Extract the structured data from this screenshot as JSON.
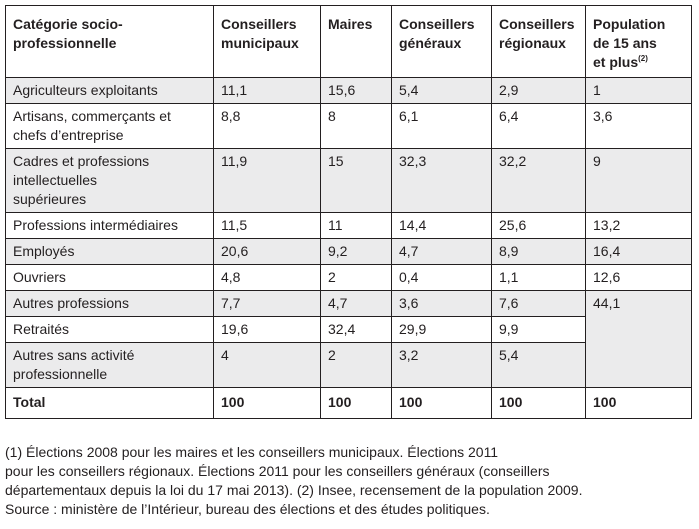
{
  "table": {
    "headers": [
      "Catégorie socio-professionnelle",
      "Conseillers municipaux",
      "Maires",
      "Conseillers généraux",
      "Conseillers régionaux",
      "Population de 15 ans et plus"
    ],
    "header_lines": {
      "c0": [
        "Catégorie socio-",
        "professionnelle"
      ],
      "c1": [
        "Conseillers",
        "municipaux"
      ],
      "c2": [
        "Maires"
      ],
      "c3": [
        "Conseillers",
        "généraux"
      ],
      "c4": [
        "Conseillers",
        "régionaux"
      ],
      "c5": [
        "Population",
        "de 15 ans",
        "et plus"
      ],
      "c5_note": "(2)"
    },
    "rows": [
      {
        "label_lines": [
          "Agriculteurs exploitants"
        ],
        "values": [
          "11,1",
          "15,6",
          "5,4",
          "2,9",
          "1"
        ]
      },
      {
        "label_lines": [
          "Artisans, commerçants et",
          "chefs d’entreprise"
        ],
        "values": [
          "8,8",
          "8",
          "6,1",
          "6,4",
          "3,6"
        ]
      },
      {
        "label_lines": [
          "Cadres et professions",
          "intellectuelles",
          "supérieures"
        ],
        "values": [
          "11,9",
          "15",
          "32,3",
          "32,2",
          "9"
        ]
      },
      {
        "label_lines": [
          "Professions intermédiaires"
        ],
        "values": [
          "11,5",
          "11",
          "14,4",
          "25,6",
          "13,2"
        ]
      },
      {
        "label_lines": [
          "Employés"
        ],
        "values": [
          "20,6",
          "9,2",
          "4,7",
          "8,9",
          "16,4"
        ]
      },
      {
        "label_lines": [
          "Ouvriers"
        ],
        "values": [
          "4,8",
          "2",
          "0,4",
          "1,1",
          "12,6"
        ]
      },
      {
        "label_lines": [
          "Autres professions"
        ],
        "values": [
          "7,7",
          "4,7",
          "3,6",
          "7,6"
        ]
      },
      {
        "label_lines": [
          "Retraités"
        ],
        "values": [
          "19,6",
          "32,4",
          "29,9",
          "9,9"
        ]
      },
      {
        "label_lines": [
          "Autres sans activité",
          "professionnelle"
        ],
        "values": [
          "4",
          "2",
          "3,2",
          "5,4"
        ]
      }
    ],
    "merged_population_value": "44,1",
    "total": {
      "label": "Total",
      "values": [
        "100",
        "100",
        "100",
        "100",
        "100"
      ]
    }
  },
  "notes": [
    "(1) Élections 2008 pour les maires et les conseillers municipaux. Élections 2011",
    "pour les conseillers régionaux. Élections 2011 pour les conseillers généraux (conseillers",
    "départementaux depuis la loi du 17 mai 2013). (2) Insee, recensement de la population 2009.",
    "Source : ministère de l’Intérieur, bureau des élections et des études politiques."
  ],
  "colors": {
    "shade": "#ebebec",
    "border": "#231f20",
    "text": "#231f20"
  }
}
